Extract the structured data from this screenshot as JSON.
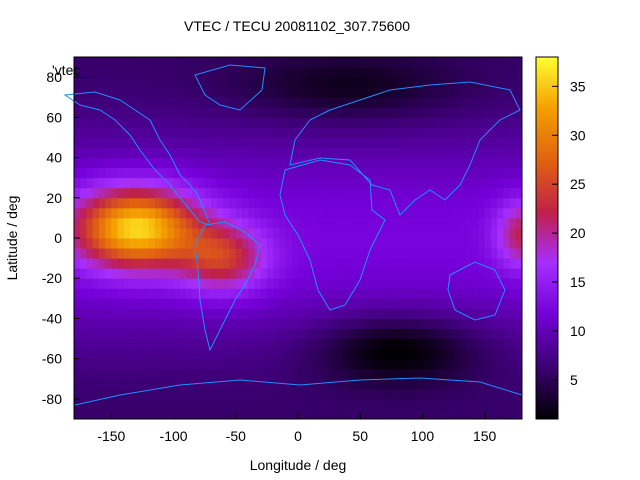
{
  "chart_data": {
    "type": "heatmap",
    "title": "VTEC / TECU 20081102_307.75600",
    "key_label": "'vtec_",
    "xlabel": "Longitude / deg",
    "ylabel": "Latitude / deg",
    "xlim": [
      -180,
      180
    ],
    "ylim": [
      -90,
      90
    ],
    "x_ticks": [
      -150,
      -100,
      -50,
      0,
      50,
      100,
      150
    ],
    "y_ticks": [
      -80,
      -60,
      -40,
      -20,
      0,
      20,
      40,
      60,
      80
    ],
    "colorbar": {
      "range": [
        1,
        38
      ],
      "ticks": [
        5,
        10,
        15,
        20,
        25,
        30,
        35
      ]
    },
    "palette": [
      "#000000",
      "#3a0070",
      "#7400d8",
      "#a52fff",
      "#c0204a",
      "#e06010",
      "#f5a000",
      "#ffff30"
    ],
    "coastline_color": "#1f8fff",
    "max_region": "equatorial Pacific, lon -170 to -40",
    "min_region": "southern Indian Ocean, lat -55"
  }
}
